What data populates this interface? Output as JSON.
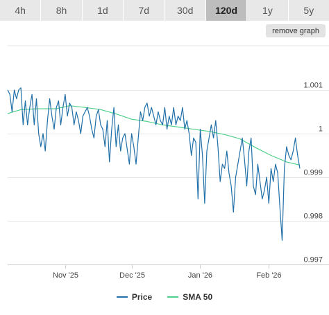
{
  "tabs": [
    {
      "label": "4h",
      "active": false
    },
    {
      "label": "8h",
      "active": false
    },
    {
      "label": "1d",
      "active": false
    },
    {
      "label": "7d",
      "active": false
    },
    {
      "label": "30d",
      "active": false
    },
    {
      "label": "120d",
      "active": true
    },
    {
      "label": "1y",
      "active": false
    },
    {
      "label": "5y",
      "active": false
    }
  ],
  "remove_graph_label": "remove graph",
  "colors": {
    "price": "#1f6fa8",
    "sma": "#4fd08a",
    "grid": "#e6e6e6",
    "axis": "#cccccc",
    "active_tab": "#bdbdbd"
  },
  "chart_data": {
    "type": "line",
    "x_range": [
      "2025-10-06",
      "2026-02-15"
    ],
    "ylim": [
      0.997,
      1.001
    ],
    "y_ticks": [
      {
        "value": 1.001,
        "label": "1.001"
      },
      {
        "value": 1.0,
        "label": "1"
      },
      {
        "value": 0.999,
        "label": "0.999"
      },
      {
        "value": 0.998,
        "label": "0.998"
      },
      {
        "value": 0.997,
        "label": "0.997"
      }
    ],
    "x_ticks": [
      {
        "date": "2025-11-01",
        "label": "Nov '25"
      },
      {
        "date": "2025-12-01",
        "label": "Dec '25"
      },
      {
        "date": "2026-01-01",
        "label": "Jan '26"
      },
      {
        "date": "2026-02-01",
        "label": "Feb '26"
      }
    ],
    "grid": true,
    "legend": "bottom-center",
    "series": [
      {
        "name": "Price",
        "points": [
          [
            "2025-10-06",
            1.001
          ],
          [
            "2025-10-07",
            1.0009
          ],
          [
            "2025-10-08",
            1.0005
          ],
          [
            "2025-10-09",
            1.001
          ],
          [
            "2025-10-10",
            1.0008
          ],
          [
            "2025-10-11",
            1.001
          ],
          [
            "2025-10-12",
            1.00105
          ],
          [
            "2025-10-13",
            1.0002
          ],
          [
            "2025-10-14",
            1.00075
          ],
          [
            "2025-10-15",
            1.0002
          ],
          [
            "2025-10-16",
            1.0006
          ],
          [
            "2025-10-17",
            1.0009
          ],
          [
            "2025-10-18",
            1.0002
          ],
          [
            "2025-10-19",
            1.0008
          ],
          [
            "2025-10-20",
            1.0
          ],
          [
            "2025-10-21",
            0.9997
          ],
          [
            "2025-10-22",
            1.0
          ],
          [
            "2025-10-23",
            0.9996
          ],
          [
            "2025-10-24",
            1.0003
          ],
          [
            "2025-10-25",
            1.0008
          ],
          [
            "2025-10-26",
            1.0004
          ],
          [
            "2025-10-27",
            1.0001
          ],
          [
            "2025-10-28",
            1.0006
          ],
          [
            "2025-10-29",
            1.00075
          ],
          [
            "2025-10-30",
            1.0002
          ],
          [
            "2025-10-31",
            1.0006
          ],
          [
            "2025-11-01",
            1.0009
          ],
          [
            "2025-11-02",
            1.0004
          ],
          [
            "2025-11-03",
            1.0007
          ],
          [
            "2025-11-04",
            1.0006
          ],
          [
            "2025-11-05",
            1.0002
          ],
          [
            "2025-11-06",
            1.0005
          ],
          [
            "2025-11-07",
            1.0003
          ],
          [
            "2025-11-08",
            1.0
          ],
          [
            "2025-11-09",
            1.0004
          ],
          [
            "2025-11-10",
            1.0005
          ],
          [
            "2025-11-11",
            1.0006
          ],
          [
            "2025-11-12",
            1.0004
          ],
          [
            "2025-11-13",
            1.0001
          ],
          [
            "2025-11-14",
            0.9999
          ],
          [
            "2025-11-15",
            1.0004
          ],
          [
            "2025-11-16",
            1.00055
          ],
          [
            "2025-11-17",
            1.0002
          ],
          [
            "2025-11-18",
            1.0001
          ],
          [
            "2025-11-19",
            0.9997
          ],
          [
            "2025-11-20",
            1.0003
          ],
          [
            "2025-11-21",
            0.99935
          ],
          [
            "2025-11-22",
            1.0001
          ],
          [
            "2025-11-23",
            1.0006
          ],
          [
            "2025-11-24",
            0.9997
          ],
          [
            "2025-11-25",
            1.0002
          ],
          [
            "2025-11-26",
            0.9996
          ],
          [
            "2025-11-27",
            0.9999
          ],
          [
            "2025-11-28",
            1.0
          ],
          [
            "2025-11-29",
            0.99965
          ],
          [
            "2025-11-30",
            0.9993
          ],
          [
            "2025-12-01",
            1.0
          ],
          [
            "2025-12-02",
            0.9997
          ],
          [
            "2025-12-03",
            0.9993
          ],
          [
            "2025-12-04",
            0.9999
          ],
          [
            "2025-12-05",
            1.0005
          ],
          [
            "2025-12-06",
            1.0003
          ],
          [
            "2025-12-07",
            1.0006
          ],
          [
            "2025-12-08",
            1.0007
          ],
          [
            "2025-12-09",
            1.0004
          ],
          [
            "2025-12-10",
            1.0006
          ],
          [
            "2025-12-11",
            1.0004
          ],
          [
            "2025-12-12",
            1.0002
          ],
          [
            "2025-12-13",
            1.0005
          ],
          [
            "2025-12-14",
            1.0003
          ],
          [
            "2025-12-15",
            1.0002
          ],
          [
            "2025-12-16",
            1.0006
          ],
          [
            "2025-12-17",
            1.0001
          ],
          [
            "2025-12-18",
            1.0004
          ],
          [
            "2025-12-19",
            1.0002
          ],
          [
            "2025-12-20",
            1.0006
          ],
          [
            "2025-12-21",
            1.0002
          ],
          [
            "2025-12-22",
            1.0004
          ],
          [
            "2025-12-23",
            1.0003
          ],
          [
            "2025-12-24",
            1.0006
          ],
          [
            "2025-12-25",
            1.0001
          ],
          [
            "2025-12-26",
            1.0003
          ],
          [
            "2025-12-27",
            1.0
          ],
          [
            "2025-12-28",
            0.9995
          ],
          [
            "2025-12-29",
            0.9999
          ],
          [
            "2025-12-30",
            0.9998
          ],
          [
            "2025-12-31",
            0.9985
          ],
          [
            "2026-01-01",
            1.0001
          ],
          [
            "2026-01-02",
            0.9995
          ],
          [
            "2026-01-03",
            0.9984
          ],
          [
            "2026-01-04",
            0.9996
          ],
          [
            "2026-01-05",
            0.9999
          ],
          [
            "2026-01-06",
            1.0002
          ],
          [
            "2026-01-07",
            0.9999
          ],
          [
            "2026-01-08",
            1.0003
          ],
          [
            "2026-01-09",
            0.9997
          ],
          [
            "2026-01-10",
            0.9989
          ],
          [
            "2026-01-11",
            0.9993
          ],
          [
            "2026-01-12",
            0.9992
          ],
          [
            "2026-01-13",
            0.9996
          ],
          [
            "2026-01-14",
            0.9991
          ],
          [
            "2026-01-15",
            0.9988
          ],
          [
            "2026-01-16",
            0.9982
          ],
          [
            "2026-01-17",
            0.999
          ],
          [
            "2026-01-18",
            0.9993
          ],
          [
            "2026-01-19",
            0.9996
          ],
          [
            "2026-01-20",
            0.9999
          ],
          [
            "2026-01-21",
            0.9994
          ],
          [
            "2026-01-22",
            0.9988
          ],
          [
            "2026-01-23",
            0.9996
          ],
          [
            "2026-01-24",
            0.9999
          ],
          [
            "2026-01-25",
            0.9988
          ],
          [
            "2026-01-26",
            0.9986
          ],
          [
            "2026-01-27",
            0.9993
          ],
          [
            "2026-01-28",
            0.9989
          ],
          [
            "2026-01-29",
            0.9985
          ],
          [
            "2026-01-30",
            0.9987
          ],
          [
            "2026-01-31",
            0.999
          ],
          [
            "2026-02-01",
            0.9984
          ],
          [
            "2026-02-02",
            0.9992
          ],
          [
            "2026-02-03",
            0.9989
          ],
          [
            "2026-02-04",
            0.9993
          ],
          [
            "2026-02-05",
            0.9991
          ],
          [
            "2026-02-06",
            0.9983
          ],
          [
            "2026-02-07",
            0.99755
          ],
          [
            "2026-02-08",
            0.9992
          ],
          [
            "2026-02-09",
            0.9997
          ],
          [
            "2026-02-10",
            0.9995
          ],
          [
            "2026-02-11",
            0.9994
          ],
          [
            "2026-02-12",
            0.9996
          ],
          [
            "2026-02-13",
            0.9999
          ],
          [
            "2026-02-14",
            0.9995
          ],
          [
            "2026-02-15",
            0.9992
          ]
        ]
      },
      {
        "name": "SMA 50",
        "points": [
          [
            "2025-10-06",
            1.00046
          ],
          [
            "2025-10-12",
            1.00055
          ],
          [
            "2025-10-20",
            1.00057
          ],
          [
            "2025-10-28",
            1.00057
          ],
          [
            "2025-11-03",
            1.00064
          ],
          [
            "2025-11-10",
            1.0006
          ],
          [
            "2025-11-17",
            1.00055
          ],
          [
            "2025-11-24",
            1.00045
          ],
          [
            "2025-12-01",
            1.00033
          ],
          [
            "2025-12-08",
            1.00028
          ],
          [
            "2025-12-15",
            1.0002
          ],
          [
            "2025-12-22",
            1.00015
          ],
          [
            "2025-12-29",
            1.0001
          ],
          [
            "2026-01-05",
            1.00005
          ],
          [
            "2026-01-12",
            0.99998
          ],
          [
            "2026-01-19",
            0.99988
          ],
          [
            "2026-01-26",
            0.99968
          ],
          [
            "2026-02-02",
            0.9995
          ],
          [
            "2026-02-09",
            0.99935
          ],
          [
            "2026-02-15",
            0.99928
          ]
        ]
      }
    ]
  }
}
